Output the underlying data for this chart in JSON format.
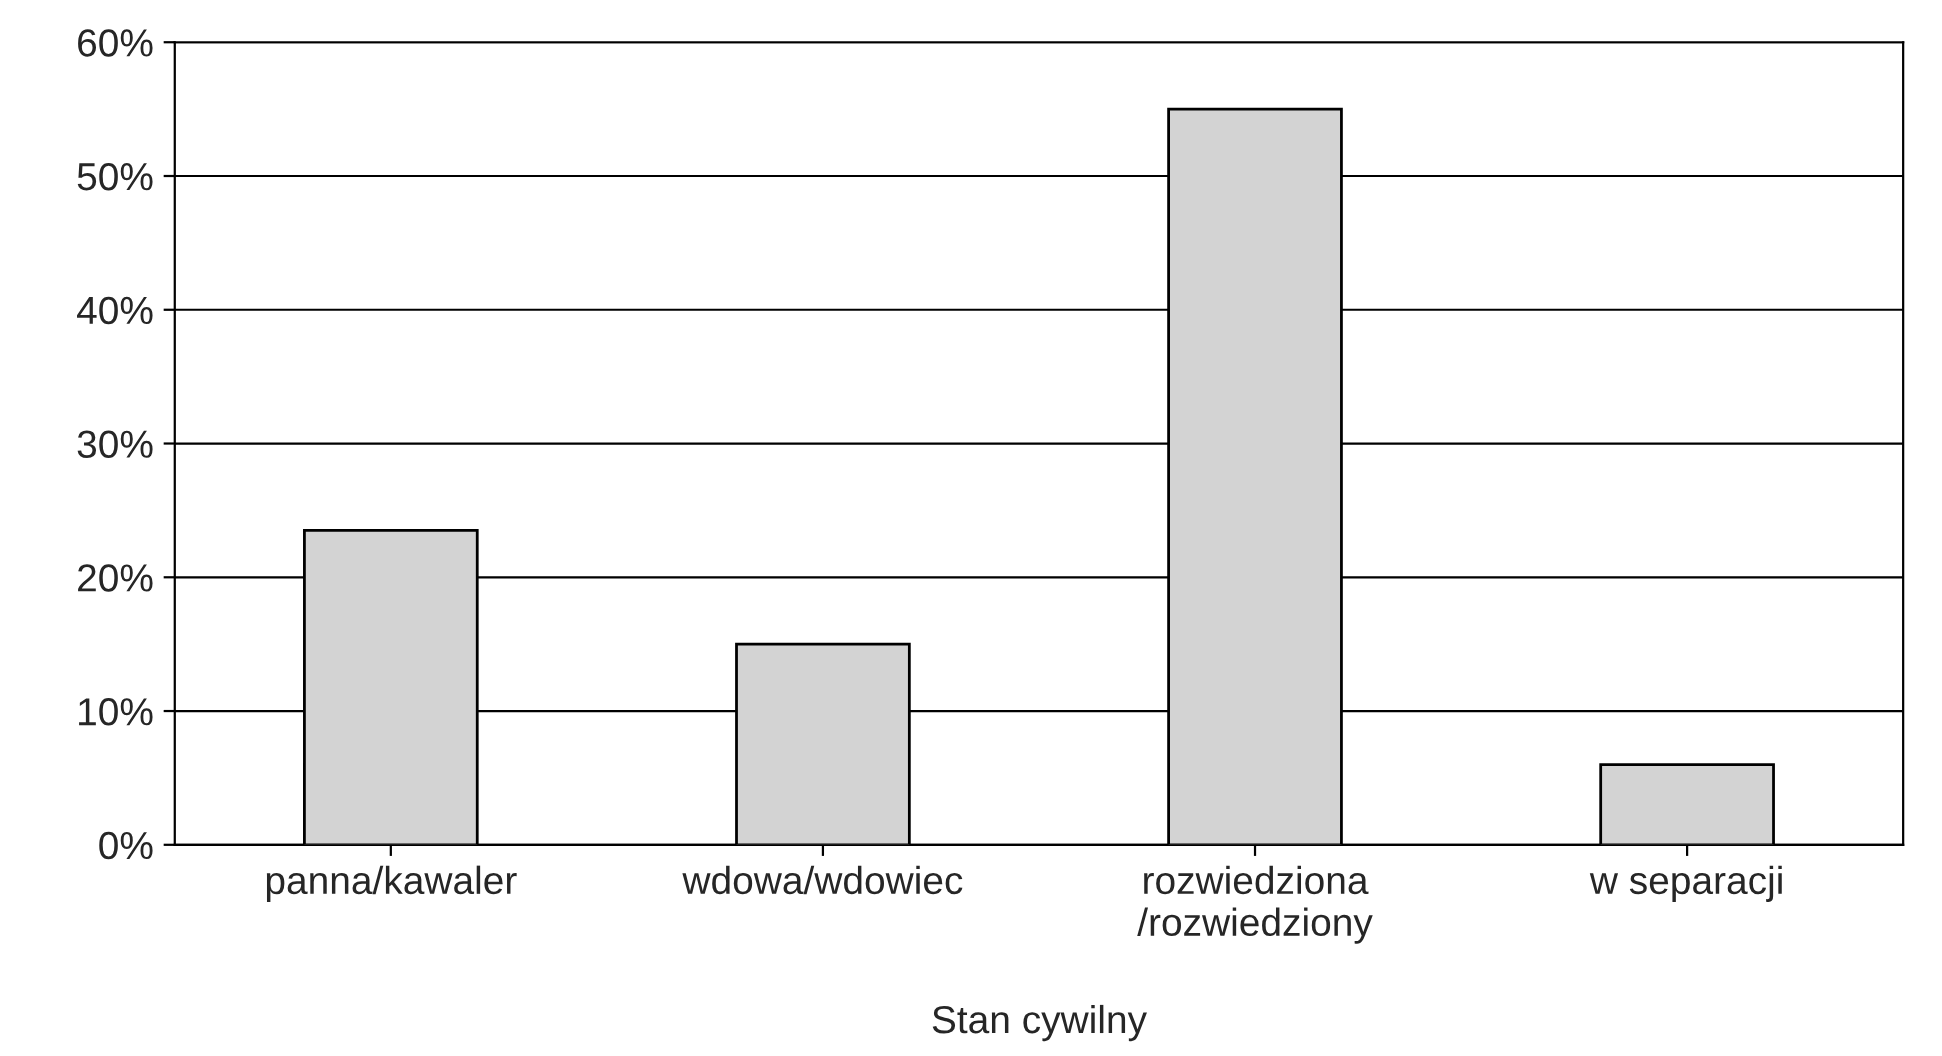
{
  "chart_data": {
    "type": "bar",
    "xlabel": "Stan cywilny",
    "categories": [
      "panna/kawaler",
      "wdowa/wdowiec",
      "rozwiedziona\n/rozwiedziony",
      "w separacji"
    ],
    "values": [
      23.5,
      15,
      55,
      6
    ],
    "color": "#d3d3d3",
    "ylim": [
      0,
      60
    ],
    "yticks": [
      {
        "value": 0,
        "label": "0%"
      },
      {
        "value": 10,
        "label": "10%"
      },
      {
        "value": 20,
        "label": "20%"
      },
      {
        "value": 30,
        "label": "30%"
      },
      {
        "value": 40,
        "label": "40%"
      },
      {
        "value": 50,
        "label": "50%"
      },
      {
        "value": 60,
        "label": "60%"
      }
    ],
    "grid": "y"
  }
}
